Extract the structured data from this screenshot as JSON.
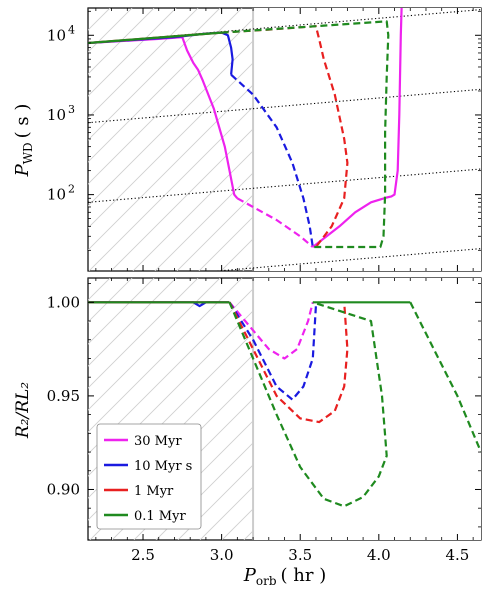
{
  "chart_data": [
    {
      "type": "line",
      "panel": "top",
      "ylabel_main": "P",
      "ylabel_sub": "WD",
      "ylabel_unit": "( s )",
      "yscale": "log",
      "xlim": [
        2.15,
        4.65
      ],
      "ylim": [
        11,
        22000
      ],
      "yticks": [
        {
          "value": 100,
          "base": "10",
          "exp": "2"
        },
        {
          "value": 1000,
          "base": "10",
          "exp": "3"
        },
        {
          "value": 10000,
          "base": "10",
          "exp": "4"
        }
      ],
      "hatched_region_x": [
        2.15,
        3.2
      ],
      "vertical_line_x": 3.2,
      "reference_lines": [
        [
          [
            2.15,
            8000
          ],
          [
            4.65,
            21000
          ]
        ],
        [
          [
            2.15,
            800
          ],
          [
            4.65,
            2100
          ]
        ],
        [
          [
            2.15,
            80
          ],
          [
            4.65,
            210
          ]
        ],
        [
          [
            2.15,
            8
          ],
          [
            4.65,
            21
          ]
        ]
      ],
      "series": [
        {
          "name": "30 Myr",
          "color": "#ee22ee",
          "solid": [
            [
              2.15,
              8000
            ],
            [
              2.6,
              9000
            ],
            [
              2.75,
              9500
            ],
            [
              2.78,
              6500
            ],
            [
              2.82,
              4500
            ],
            [
              2.85,
              3700
            ],
            [
              2.88,
              2700
            ],
            [
              2.95,
              1200
            ],
            [
              3.02,
              400
            ],
            [
              3.05,
              200
            ],
            [
              3.08,
              100
            ],
            [
              3.1,
              90
            ]
          ],
          "dashed": [
            [
              3.1,
              90
            ],
            [
              3.2,
              70
            ],
            [
              3.35,
              48
            ],
            [
              3.5,
              30
            ],
            [
              3.58,
              22
            ]
          ],
          "solid2": [
            [
              3.58,
              22
            ],
            [
              3.75,
              40
            ],
            [
              3.85,
              60
            ],
            [
              3.95,
              80
            ],
            [
              4.05,
              92
            ],
            [
              4.08,
              95
            ],
            [
              4.1,
              100
            ],
            [
              4.12,
              200
            ],
            [
              4.13,
              1000
            ],
            [
              4.14,
              10000
            ],
            [
              4.145,
              22000
            ]
          ]
        },
        {
          "name": "10 Myr s",
          "color": "#1a1ae0",
          "solid": [
            [
              2.15,
              8000
            ],
            [
              2.7,
              9500
            ],
            [
              2.9,
              10500
            ],
            [
              3.0,
              10800
            ],
            [
              3.04,
              10000
            ],
            [
              3.06,
              7000
            ],
            [
              3.07,
              5000
            ],
            [
              3.06,
              3200
            ]
          ],
          "dashed": [
            [
              3.06,
              3200
            ],
            [
              3.2,
              1800
            ],
            [
              3.35,
              700
            ],
            [
              3.45,
              250
            ],
            [
              3.52,
              90
            ],
            [
              3.56,
              40
            ],
            [
              3.58,
              22
            ]
          ]
        },
        {
          "name": "1 Myr",
          "color": "#e82020",
          "solid": [
            [
              2.15,
              8000
            ],
            [
              3.0,
              10800
            ]
          ],
          "dashed": [
            [
              3.0,
              10800
            ],
            [
              3.3,
              11800
            ],
            [
              3.6,
              13000
            ],
            [
              3.62,
              9000
            ],
            [
              3.65,
              5000
            ],
            [
              3.72,
              1800
            ],
            [
              3.78,
              500
            ],
            [
              3.8,
              250
            ],
            [
              3.78,
              90
            ],
            [
              3.7,
              40
            ],
            [
              3.6,
              22
            ]
          ]
        },
        {
          "name": "0.1 Myr",
          "color": "#1f8a1f",
          "solid": [
            [
              2.15,
              8000
            ],
            [
              3.0,
              10800
            ]
          ],
          "dashed": [
            [
              3.0,
              10800
            ],
            [
              3.6,
              13000
            ],
            [
              4.05,
              15000
            ],
            [
              4.06,
              10000
            ],
            [
              4.05,
              3000
            ],
            [
              4.04,
              600
            ],
            [
              4.04,
              100
            ],
            [
              4.03,
              30
            ],
            [
              4.01,
              22
            ],
            [
              3.58,
              22
            ]
          ]
        }
      ]
    },
    {
      "type": "line",
      "panel": "bottom",
      "ylabel": "R₂/RL₂",
      "xlabel_main": "P",
      "xlabel_sub": "orb",
      "xlabel_unit": "( hr )",
      "xlim": [
        2.15,
        4.65
      ],
      "ylim": [
        0.873,
        1.013
      ],
      "xticks": [
        {
          "value": 2.5,
          "label": "2.5"
        },
        {
          "value": 3.0,
          "label": "3.0"
        },
        {
          "value": 3.5,
          "label": "3.5"
        },
        {
          "value": 4.0,
          "label": "4.0"
        },
        {
          "value": 4.5,
          "label": "4.5"
        }
      ],
      "yticks": [
        {
          "value": 0.9,
          "label": "0.90"
        },
        {
          "value": 0.95,
          "label": "0.95"
        },
        {
          "value": 1.0,
          "label": "1.00"
        }
      ],
      "hatched_region_x": [
        2.15,
        3.2
      ],
      "vertical_line_x": 3.2,
      "legend_position": "lower-left",
      "series": [
        {
          "name": "30 Myr",
          "color": "#ee22ee",
          "solid": [
            [
              2.15,
              1.0
            ],
            [
              3.05,
              1.0
            ]
          ],
          "dashed": [
            [
              3.05,
              1.0
            ],
            [
              3.15,
              0.99
            ],
            [
              3.3,
              0.975
            ],
            [
              3.4,
              0.97
            ],
            [
              3.48,
              0.975
            ],
            [
              3.55,
              0.99
            ],
            [
              3.58,
              1.0
            ]
          ]
        },
        {
          "name": "10 Myr s",
          "color": "#1a1ae0",
          "solid": [
            [
              2.15,
              1.0
            ],
            [
              2.82,
              1.0
            ],
            [
              2.86,
              0.998
            ],
            [
              2.9,
              1.0
            ],
            [
              3.05,
              1.0
            ]
          ],
          "dashed": [
            [
              3.05,
              1.0
            ],
            [
              3.2,
              0.98
            ],
            [
              3.35,
              0.955
            ],
            [
              3.45,
              0.948
            ],
            [
              3.52,
              0.955
            ],
            [
              3.58,
              0.97
            ],
            [
              3.6,
              0.998
            ]
          ]
        },
        {
          "name": "1 Myr",
          "color": "#e82020",
          "solid": [
            [
              2.15,
              1.0
            ],
            [
              3.05,
              1.0
            ]
          ],
          "dashed": [
            [
              3.05,
              1.0
            ],
            [
              3.2,
              0.975
            ],
            [
              3.35,
              0.95
            ],
            [
              3.5,
              0.938
            ],
            [
              3.62,
              0.936
            ],
            [
              3.72,
              0.942
            ],
            [
              3.78,
              0.955
            ],
            [
              3.8,
              0.975
            ],
            [
              3.78,
              1.0
            ]
          ]
        },
        {
          "name": "0.1 Myr",
          "color": "#1f8a1f",
          "solid": [
            [
              2.15,
              1.0
            ],
            [
              3.05,
              1.0
            ]
          ],
          "dashed": [
            [
              3.05,
              1.0
            ],
            [
              3.2,
              0.97
            ],
            [
              3.35,
              0.94
            ],
            [
              3.5,
              0.912
            ],
            [
              3.65,
              0.895
            ],
            [
              3.78,
              0.891
            ],
            [
              3.9,
              0.896
            ],
            [
              4.0,
              0.907
            ],
            [
              4.05,
              0.918
            ],
            [
              4.02,
              0.95
            ],
            [
              3.95,
              0.99
            ],
            [
              3.58,
              1.0
            ]
          ],
          "solid2": [
            [
              3.58,
              1.0
            ],
            [
              4.2,
              1.0
            ]
          ],
          "dashed2": [
            [
              4.2,
              1.0
            ],
            [
              4.35,
              0.975
            ],
            [
              4.5,
              0.95
            ],
            [
              4.65,
              0.92
            ]
          ]
        }
      ]
    }
  ]
}
